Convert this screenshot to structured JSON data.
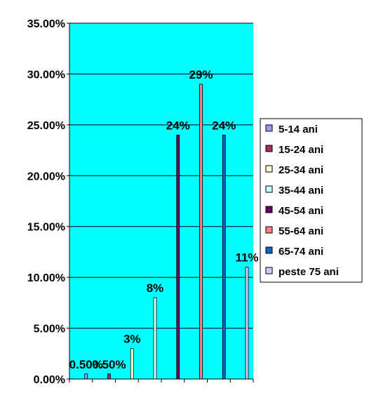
{
  "chart_data": {
    "type": "bar",
    "ylim": [
      0,
      35
    ],
    "yticks": [
      "0.00%",
      "5.00%",
      "10.00%",
      "15.00%",
      "20.00%",
      "25.00%",
      "30.00%",
      "35.00%"
    ],
    "tick_values": [
      0,
      5,
      10,
      15,
      20,
      25,
      30,
      35
    ],
    "grid": true,
    "legend_position": "right",
    "plot_background": "#00FFFF",
    "series": [
      {
        "name": "5-14 ani",
        "value": 0.5,
        "label": "0.50%",
        "color": "#9999FF"
      },
      {
        "name": "15-24 ani",
        "value": 0.5,
        "label": "0.50%",
        "color": "#993366"
      },
      {
        "name": "25-34 ani",
        "value": 3,
        "label": "3%",
        "color": "#FFFFCC"
      },
      {
        "name": "35-44 ani",
        "value": 8,
        "label": "8%",
        "color": "#CCFFFF"
      },
      {
        "name": "45-54 ani",
        "value": 24,
        "label": "24%",
        "color": "#660066"
      },
      {
        "name": "55-64 ani",
        "value": 29,
        "label": "29%",
        "color": "#FF8080"
      },
      {
        "name": "65-74 ani",
        "value": 24,
        "label": "24%",
        "color": "#0066CC"
      },
      {
        "name": "peste 75 ani",
        "value": 11,
        "label": "11%",
        "color": "#CCCCFF"
      }
    ]
  }
}
